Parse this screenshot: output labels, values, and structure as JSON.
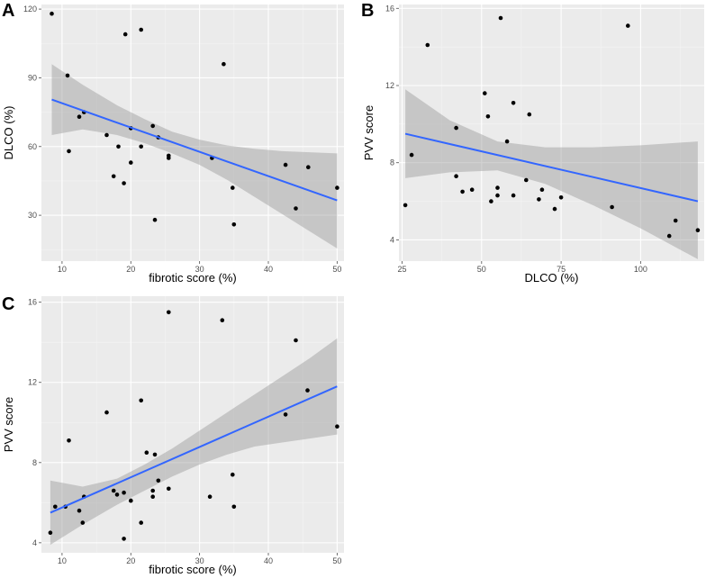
{
  "chart_data": [
    {
      "id": "A",
      "type": "scatter",
      "panel_label": "A",
      "xlabel": "fibrotic score (%)",
      "ylabel": "DLCO (%)",
      "xlim": [
        7,
        51
      ],
      "ylim": [
        10,
        122
      ],
      "xticks": [
        10,
        20,
        30,
        40,
        50
      ],
      "yticks": [
        30,
        60,
        90,
        120
      ],
      "points": [
        [
          8.5,
          118
        ],
        [
          10.8,
          91
        ],
        [
          11,
          58
        ],
        [
          12.5,
          73
        ],
        [
          13.2,
          75
        ],
        [
          16.5,
          65
        ],
        [
          17.5,
          47
        ],
        [
          18.2,
          60
        ],
        [
          19,
          44
        ],
        [
          19.2,
          109
        ],
        [
          20,
          68
        ],
        [
          20,
          53
        ],
        [
          21.5,
          111
        ],
        [
          21.5,
          60
        ],
        [
          23.2,
          69
        ],
        [
          23.5,
          28
        ],
        [
          24,
          64
        ],
        [
          25.5,
          56
        ],
        [
          25.5,
          55
        ],
        [
          31.8,
          55
        ],
        [
          33.5,
          96
        ],
        [
          34.8,
          42
        ],
        [
          35,
          26
        ],
        [
          42.5,
          52
        ],
        [
          44,
          33
        ],
        [
          45.8,
          51
        ],
        [
          50,
          42
        ]
      ],
      "fit": {
        "x": [
          8.5,
          50
        ],
        "y": [
          80.5,
          36.5
        ]
      },
      "ci": {
        "x": [
          8.5,
          13,
          18,
          22,
          26,
          30,
          34,
          38,
          42,
          46,
          50
        ],
        "lower": [
          65,
          67.5,
          65,
          61.5,
          57,
          52,
          45.5,
          38,
          30.5,
          23,
          15.5
        ],
        "upper": [
          96,
          87,
          78,
          72,
          66.5,
          63,
          60.5,
          59,
          58,
          57.5,
          57
        ]
      }
    },
    {
      "id": "B",
      "type": "scatter",
      "panel_label": "B",
      "xlabel": "DLCO (%)",
      "ylabel": "PVV score",
      "xlim": [
        24,
        120
      ],
      "ylim": [
        2.9,
        16.2
      ],
      "xticks": [
        25,
        50,
        75,
        100
      ],
      "yticks": [
        4,
        8,
        12,
        16
      ],
      "points": [
        [
          26,
          5.8
        ],
        [
          28,
          8.4
        ],
        [
          33,
          14.1
        ],
        [
          42,
          9.8
        ],
        [
          42,
          7.3
        ],
        [
          44,
          6.5
        ],
        [
          47,
          6.6
        ],
        [
          51,
          11.6
        ],
        [
          52,
          10.4
        ],
        [
          53,
          6
        ],
        [
          55,
          6.3
        ],
        [
          55,
          6.7
        ],
        [
          56,
          15.5
        ],
        [
          58,
          9.1
        ],
        [
          60,
          11.1
        ],
        [
          60,
          6.3
        ],
        [
          64,
          7.1
        ],
        [
          65,
          10.5
        ],
        [
          68,
          6.1
        ],
        [
          69,
          6.6
        ],
        [
          73,
          5.6
        ],
        [
          75,
          6.2
        ],
        [
          91,
          5.7
        ],
        [
          96,
          15.1
        ],
        [
          109,
          4.2
        ],
        [
          111,
          5
        ],
        [
          118,
          4.5
        ]
      ],
      "fit": {
        "x": [
          26,
          118
        ],
        "y": [
          9.5,
          6
        ]
      },
      "ci": {
        "x": [
          26,
          40,
          55,
          70,
          85,
          100,
          118
        ],
        "lower": [
          7.2,
          7.5,
          7.6,
          6.9,
          5.8,
          4.6,
          3
        ]
      },
      "ci_upper": [
        11.8,
        10.2,
        9.1,
        8.8,
        8.8,
        8.9,
        9.1
      ]
    },
    {
      "id": "C",
      "type": "scatter",
      "panel_label": "C",
      "xlabel": "fibrotic score (%)",
      "ylabel": "PVV score",
      "xlim": [
        7,
        51
      ],
      "ylim": [
        3.5,
        16.3
      ],
      "xticks": [
        10,
        20,
        30,
        40,
        50
      ],
      "yticks": [
        4,
        8,
        12,
        16
      ],
      "points": [
        [
          8.3,
          4.5
        ],
        [
          9,
          5.8
        ],
        [
          10.5,
          5.8
        ],
        [
          11,
          9.1
        ],
        [
          12.5,
          5.6
        ],
        [
          13,
          5
        ],
        [
          13.2,
          6.3
        ],
        [
          16.5,
          10.5
        ],
        [
          17.5,
          6.6
        ],
        [
          18,
          6.4
        ],
        [
          19,
          6.5
        ],
        [
          19,
          4.2
        ],
        [
          20,
          6.1
        ],
        [
          20,
          6.1
        ],
        [
          21.5,
          11.1
        ],
        [
          21.5,
          5
        ],
        [
          22.3,
          8.5
        ],
        [
          23.2,
          6.3
        ],
        [
          23.2,
          6.6
        ],
        [
          23.5,
          8.4
        ],
        [
          24,
          7.1
        ],
        [
          25.5,
          6.7
        ],
        [
          25.5,
          15.5
        ],
        [
          31.5,
          6.3
        ],
        [
          33.3,
          15.1
        ],
        [
          34.8,
          7.4
        ],
        [
          35,
          5.8
        ],
        [
          42.5,
          10.4
        ],
        [
          44,
          14.1
        ],
        [
          45.7,
          11.6
        ],
        [
          50,
          9.8
        ]
      ],
      "fit": {
        "x": [
          8.3,
          50
        ],
        "y": [
          5.5,
          11.8
        ]
      },
      "ci": {
        "x": [
          8.3,
          13,
          18,
          22,
          26,
          30,
          34,
          38,
          42,
          46,
          50
        ],
        "lower": [
          3.9,
          4.9,
          5.9,
          6.6,
          7.3,
          7.9,
          8.4,
          8.8,
          9,
          9.2,
          9.4
        ],
        "upper": [
          7.1,
          6.8,
          7.2,
          7.9,
          8.7,
          9.6,
          10.5,
          11.4,
          12.3,
          13.2,
          14.2
        ]
      }
    }
  ]
}
